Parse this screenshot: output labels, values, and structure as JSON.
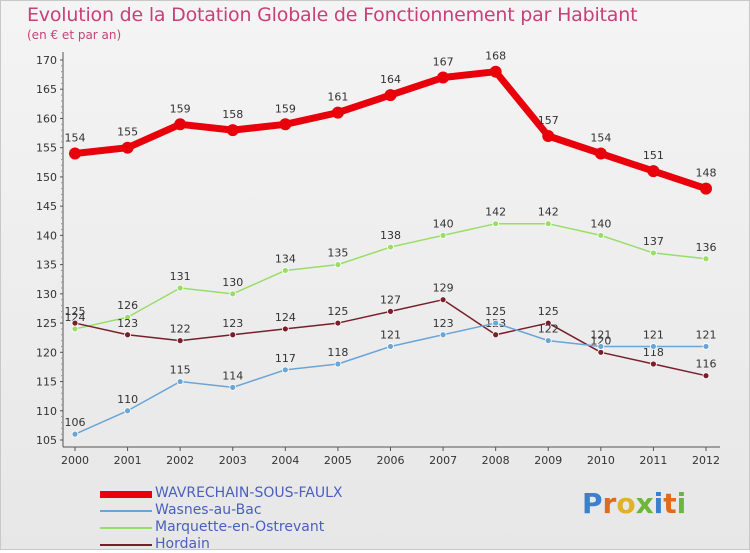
{
  "header": {
    "title": "Evolution de la Dotation Globale de Fonctionnement par Habitant",
    "subtitle": "(en € et par an)"
  },
  "brand": {
    "letters": [
      "P",
      "r",
      "o",
      "x",
      "i",
      "t",
      "i"
    ],
    "colors": [
      "#3a7fd0",
      "#e06a1e",
      "#e0b22a",
      "#6cb63a",
      "#3a7fd0",
      "#e06a1e",
      "#6cb63a"
    ]
  },
  "chart_data": {
    "type": "line",
    "title": "Evolution de la Dotation Globale de Fonctionnement par Habitant",
    "subtitle": "(en € et par an)",
    "xlabel": "",
    "ylabel": "",
    "ylim": [
      105,
      170
    ],
    "ytick_step": 5,
    "x": [
      "2000",
      "2001",
      "2002",
      "2003",
      "2004",
      "2005",
      "2006",
      "2007",
      "2008",
      "2009",
      "2010",
      "2011",
      "2012"
    ],
    "series": [
      {
        "name": "WAVRECHAIN-SOUS-FAULX",
        "color": "#e8000b",
        "values": [
          154,
          155,
          159,
          158,
          159,
          161,
          164,
          167,
          168,
          157,
          154,
          151,
          148
        ]
      },
      {
        "name": "Wasnes-au-Bac",
        "color": "#6aa5d8",
        "values": [
          106,
          110,
          115,
          114,
          117,
          118,
          121,
          123,
          125,
          122,
          121,
          121,
          121
        ]
      },
      {
        "name": "Marquette-en-Ostrevant",
        "color": "#99dd66",
        "values": [
          124,
          126,
          131,
          130,
          134,
          135,
          138,
          140,
          142,
          142,
          140,
          137,
          136
        ]
      },
      {
        "name": "Hordain",
        "color": "#7a1e2a",
        "values": [
          125,
          123,
          122,
          123,
          124,
          125,
          127,
          129,
          123,
          125,
          120,
          118,
          116
        ]
      }
    ],
    "legend_position": "bottom-left"
  }
}
